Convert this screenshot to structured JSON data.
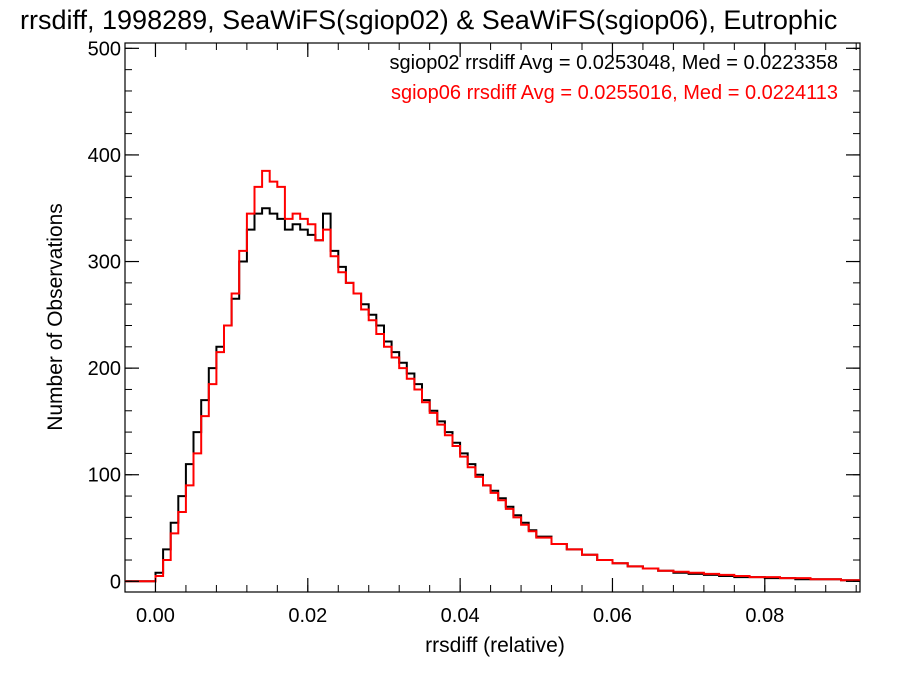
{
  "chart_data": {
    "type": "line",
    "title": "rrsdiff, 1998289, SeaWiFS(sgiop02) & SeaWiFS(sgiop06), Eutrophic",
    "xlabel": "rrsdiff (relative)",
    "ylabel": "Number of Observations",
    "xlim": [
      -0.004,
      0.0925
    ],
    "ylim": [
      -10,
      505
    ],
    "xticks": [
      0.0,
      0.02,
      0.04,
      0.06,
      0.08
    ],
    "xtick_labels": [
      "0.00",
      "0.02",
      "0.04",
      "0.06",
      "0.08"
    ],
    "yticks": [
      0,
      100,
      200,
      300,
      400,
      500
    ],
    "ytick_labels": [
      "0",
      "100",
      "200",
      "300",
      "400",
      "500"
    ],
    "grid": false,
    "annotations": [
      {
        "text": "sgiop02 rrsdiff Avg = 0.0253048, Med = 0.0223358",
        "color": "#000000"
      },
      {
        "text": "sgiop06 rrsdiff Avg = 0.0255016, Med = 0.0224113",
        "color": "#ff0000"
      }
    ],
    "series": [
      {
        "name": "sgiop02",
        "color": "#000000",
        "x": [
          -0.004,
          -0.001,
          0.0,
          0.001,
          0.002,
          0.003,
          0.004,
          0.005,
          0.006,
          0.007,
          0.008,
          0.009,
          0.01,
          0.011,
          0.012,
          0.013,
          0.014,
          0.015,
          0.016,
          0.017,
          0.018,
          0.019,
          0.02,
          0.021,
          0.022,
          0.023,
          0.024,
          0.025,
          0.026,
          0.027,
          0.028,
          0.029,
          0.03,
          0.031,
          0.032,
          0.033,
          0.034,
          0.035,
          0.036,
          0.037,
          0.038,
          0.039,
          0.04,
          0.041,
          0.042,
          0.043,
          0.044,
          0.045,
          0.046,
          0.047,
          0.048,
          0.049,
          0.05,
          0.052,
          0.054,
          0.056,
          0.058,
          0.06,
          0.062,
          0.064,
          0.066,
          0.068,
          0.07,
          0.072,
          0.074,
          0.076,
          0.078,
          0.08,
          0.082,
          0.084,
          0.086,
          0.088,
          0.09,
          0.0925
        ],
        "y": [
          0,
          0,
          8,
          30,
          55,
          80,
          110,
          140,
          170,
          200,
          220,
          240,
          265,
          300,
          330,
          345,
          350,
          345,
          340,
          330,
          335,
          330,
          325,
          320,
          345,
          310,
          295,
          280,
          270,
          260,
          250,
          240,
          225,
          215,
          205,
          195,
          185,
          170,
          160,
          150,
          140,
          130,
          120,
          110,
          100,
          90,
          85,
          78,
          70,
          62,
          55,
          48,
          42,
          35,
          30,
          25,
          20,
          17,
          14,
          12,
          10,
          8,
          7,
          6,
          5,
          4,
          4,
          3,
          3,
          2,
          2,
          2,
          1,
          1
        ]
      },
      {
        "name": "sgiop06",
        "color": "#ff0000",
        "x": [
          -0.004,
          -0.001,
          0.0,
          0.001,
          0.002,
          0.003,
          0.004,
          0.005,
          0.006,
          0.007,
          0.008,
          0.009,
          0.01,
          0.011,
          0.012,
          0.013,
          0.014,
          0.015,
          0.016,
          0.017,
          0.018,
          0.019,
          0.02,
          0.021,
          0.022,
          0.023,
          0.024,
          0.025,
          0.026,
          0.027,
          0.028,
          0.029,
          0.03,
          0.031,
          0.032,
          0.033,
          0.034,
          0.035,
          0.036,
          0.037,
          0.038,
          0.039,
          0.04,
          0.041,
          0.042,
          0.043,
          0.044,
          0.045,
          0.046,
          0.047,
          0.048,
          0.049,
          0.05,
          0.052,
          0.054,
          0.056,
          0.058,
          0.06,
          0.062,
          0.064,
          0.066,
          0.068,
          0.07,
          0.072,
          0.074,
          0.076,
          0.078,
          0.08,
          0.082,
          0.084,
          0.086,
          0.088,
          0.09,
          0.0925
        ],
        "y": [
          0,
          0,
          5,
          20,
          45,
          65,
          90,
          120,
          155,
          185,
          215,
          240,
          270,
          310,
          345,
          370,
          385,
          375,
          370,
          340,
          345,
          340,
          335,
          320,
          330,
          305,
          290,
          280,
          270,
          255,
          245,
          232,
          220,
          210,
          200,
          190,
          180,
          168,
          158,
          147,
          137,
          127,
          117,
          107,
          98,
          90,
          83,
          76,
          68,
          60,
          53,
          47,
          41,
          35,
          30,
          25,
          20,
          17,
          14,
          12,
          10,
          9,
          8,
          7,
          6,
          5,
          4,
          4,
          3,
          3,
          2,
          2,
          1,
          1
        ]
      }
    ]
  }
}
